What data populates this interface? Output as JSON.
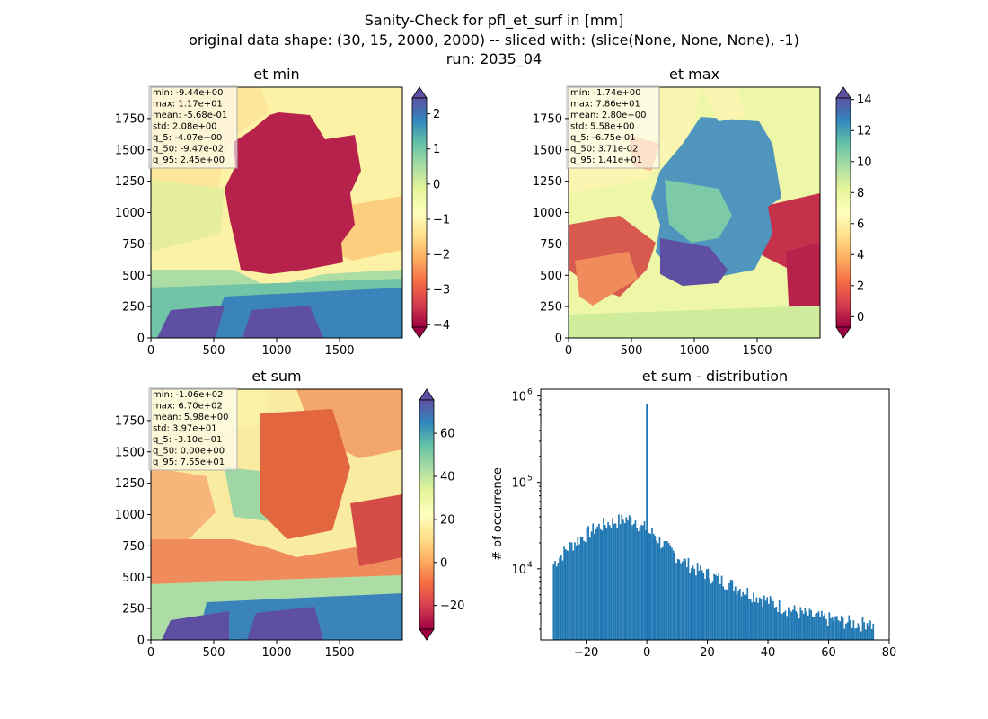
{
  "suptitle": {
    "line1": "Sanity-Check for pfl_et_surf in [mm]",
    "line2": "original data shape: (30, 15, 2000, 2000) -- sliced with: (slice(None, None, None), -1)",
    "line3": "run: 2035_04"
  },
  "panels": {
    "et_min": {
      "title": "et min",
      "stats": [
        "min: -9.44e+00",
        "max: 1.17e+01",
        "mean: -5.68e-01",
        "std: 2.08e+00",
        "q_5: -4.07e+00",
        "q_50: -9.47e-02",
        "q_95: 2.45e+00"
      ],
      "x_ticks": [
        "0",
        "500",
        "1000",
        "1500"
      ],
      "y_ticks": [
        "0",
        "250",
        "500",
        "750",
        "1000",
        "1250",
        "1500",
        "1750"
      ],
      "colorbar_ticks": [
        "2",
        "1",
        "0",
        "−1",
        "−2",
        "−3",
        "−4"
      ],
      "colorbar_range": [
        -4.07,
        2.45
      ],
      "colormap": "Spectral"
    },
    "et_max": {
      "title": "et max",
      "stats": [
        "min: -1.74e+00",
        "max: 7.86e+01",
        "mean: 2.80e+00",
        "std: 5.58e+00",
        "q_5: -6.75e-01",
        "q_50: 3.71e-02",
        "q_95: 1.41e+01"
      ],
      "x_ticks": [
        "0",
        "500",
        "1000",
        "1500"
      ],
      "y_ticks": [
        "0",
        "250",
        "500",
        "750",
        "1000",
        "1250",
        "1500",
        "1750"
      ],
      "colorbar_ticks": [
        "14",
        "12",
        "10",
        "8",
        "6",
        "4",
        "2",
        "0"
      ],
      "colorbar_range": [
        -0.675,
        14.1
      ],
      "colormap": "Spectral"
    },
    "et_sum": {
      "title": "et sum",
      "stats": [
        "min: -1.06e+02",
        "max: 6.70e+02",
        "mean: 5.98e+00",
        "std: 3.97e+01",
        "q_5: -3.10e+01",
        "q_50: 0.00e+00",
        "q_95: 7.55e+01"
      ],
      "x_ticks": [
        "0",
        "500",
        "1000",
        "1500"
      ],
      "y_ticks": [
        "0",
        "250",
        "500",
        "750",
        "1000",
        "1250",
        "1500",
        "1750"
      ],
      "colorbar_ticks": [
        "60",
        "40",
        "20",
        "0",
        "−20"
      ],
      "colorbar_range": [
        -31.0,
        75.5
      ],
      "colormap": "Spectral"
    },
    "hist": {
      "title": "et sum - distribution",
      "ylabel": "# of occurrence",
      "x_ticks": [
        "−20",
        "0",
        "20",
        "40",
        "60",
        "80"
      ],
      "y_ticks": [
        "10",
        "10",
        "10"
      ],
      "y_tick_exponents": [
        "4",
        "5",
        "6"
      ],
      "bar_color": "#1f77b4"
    }
  },
  "chart_data": [
    {
      "type": "heatmap",
      "title": "et min",
      "xlim": [
        0,
        2000
      ],
      "ylim": [
        0,
        2000
      ],
      "colorbar_range": [
        -4.07,
        2.45
      ],
      "colormap": "Spectral",
      "stats": {
        "min": -9.44,
        "max": 11.7,
        "mean": -0.568,
        "std": 2.08,
        "q_5": -4.07,
        "q_50": -0.0947,
        "q_95": 2.45
      }
    },
    {
      "type": "heatmap",
      "title": "et max",
      "xlim": [
        0,
        2000
      ],
      "ylim": [
        0,
        2000
      ],
      "colorbar_range": [
        -0.675,
        14.1
      ],
      "colormap": "Spectral",
      "stats": {
        "min": -1.74,
        "max": 78.6,
        "mean": 2.8,
        "std": 5.58,
        "q_5": -0.675,
        "q_50": 0.0371,
        "q_95": 14.1
      }
    },
    {
      "type": "heatmap",
      "title": "et sum",
      "xlim": [
        0,
        2000
      ],
      "ylim": [
        0,
        2000
      ],
      "colorbar_range": [
        -31.0,
        75.5
      ],
      "colormap": "Spectral",
      "stats": {
        "min": -106,
        "max": 670,
        "mean": 5.98,
        "std": 39.7,
        "q_5": -31.0,
        "q_50": 0.0,
        "q_95": 75.5
      }
    },
    {
      "type": "bar",
      "title": "et sum - distribution",
      "ylabel": "# of occurrence",
      "xlim": [
        -35,
        80
      ],
      "ylog": true,
      "ylim": [
        1500,
        1200000
      ],
      "bin_width": 0.5,
      "x": [
        -31,
        -28,
        -25,
        -22,
        -19,
        -16,
        -13,
        -10,
        -7,
        -4,
        -2,
        0,
        2,
        4,
        7,
        10,
        13,
        16,
        19,
        22,
        25,
        28,
        31,
        34,
        37,
        40,
        43,
        46,
        49,
        52,
        55,
        58,
        61,
        64,
        67,
        70,
        73,
        75
      ],
      "values": [
        11500,
        15000,
        19000,
        23000,
        27000,
        31000,
        34000,
        36000,
        38000,
        37000,
        30000,
        820000,
        26000,
        21000,
        17000,
        14000,
        11500,
        10000,
        9000,
        8000,
        7200,
        6500,
        5800,
        5200,
        4700,
        4200,
        3800,
        3500,
        3200,
        3000,
        2800,
        2700,
        2600,
        2500,
        2400,
        2300,
        2500,
        2000
      ]
    }
  ]
}
